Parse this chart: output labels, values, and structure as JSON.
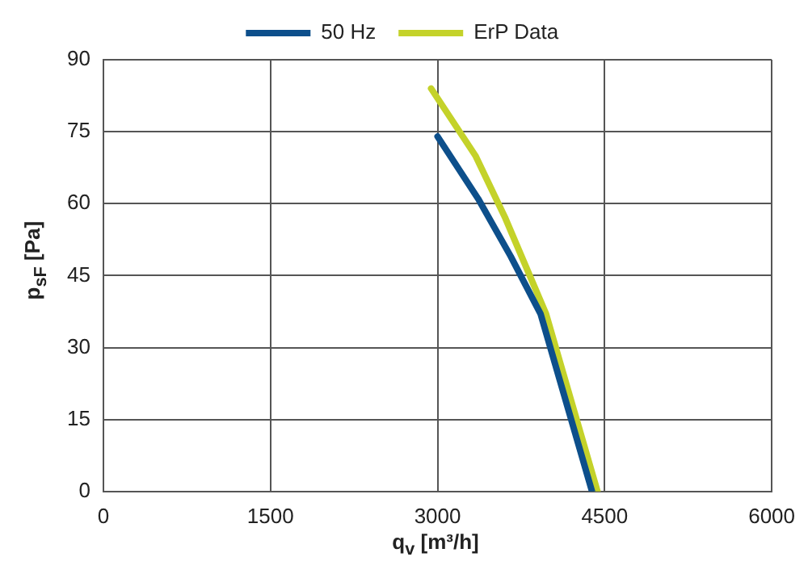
{
  "chart_data": {
    "type": "line",
    "xlabel": "q$_{v}$ [m³/h]",
    "ylabel": "p$_{sF}$ [Pa]",
    "series": [
      {
        "name": "50 Hz",
        "color": "#0d4f8b",
        "x": [
          3000,
          3365,
          3657,
          3925,
          4387
        ],
        "values": [
          74,
          61,
          49,
          37,
          0
        ]
      },
      {
        "name": "ErP Data",
        "color": "#c4d22a",
        "x": [
          2942,
          3340,
          3608,
          3974,
          4436
        ],
        "values": [
          84,
          70,
          57,
          37,
          0
        ]
      }
    ],
    "xlim": [
      0,
      6000
    ],
    "xticks": [
      0,
      1500,
      3000,
      4500,
      6000
    ],
    "ylim": [
      0,
      90
    ],
    "yticks": [
      0,
      15,
      30,
      45,
      60,
      75,
      90
    ],
    "grid": true,
    "legend": "top",
    "marker": "none",
    "line_style": "solid"
  }
}
